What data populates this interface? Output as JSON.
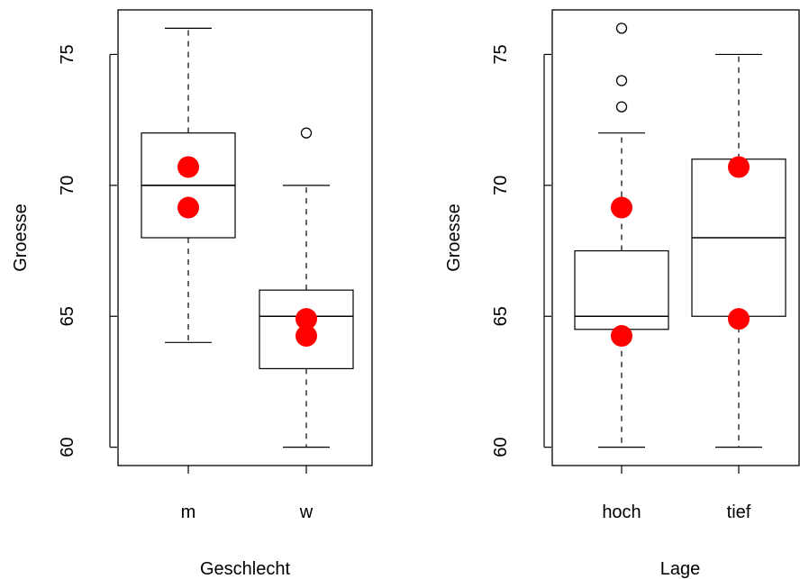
{
  "colors": {
    "mean_point": "#ff0000",
    "box_stroke": "#000000",
    "background": "#ffffff"
  },
  "chart_data": [
    {
      "type": "boxplot",
      "xlabel": "Geschlecht",
      "ylabel": "Groesse",
      "ylim": [
        59.3,
        76.7
      ],
      "yticks": [
        60,
        65,
        70,
        75
      ],
      "ytick_labels": [
        "60",
        "65",
        "70",
        "75"
      ],
      "categories": [
        "m",
        "w"
      ],
      "boxes": [
        {
          "name": "m",
          "whisker_low": 64,
          "q1": 68,
          "median": 70,
          "q3": 72,
          "whisker_high": 76,
          "outliers": []
        },
        {
          "name": "w",
          "whisker_low": 60,
          "q1": 63,
          "median": 65,
          "q3": 66,
          "whisker_high": 70,
          "outliers": [
            72
          ]
        }
      ],
      "points": [
        {
          "category": "m",
          "values": [
            70.7,
            69.15
          ]
        },
        {
          "category": "w",
          "values": [
            64.9,
            64.25
          ]
        }
      ]
    },
    {
      "type": "boxplot",
      "xlabel": "Lage",
      "ylabel": "Groesse",
      "ylim": [
        59.3,
        76.7
      ],
      "yticks": [
        60,
        65,
        70,
        75
      ],
      "ytick_labels": [
        "60",
        "65",
        "70",
        "75"
      ],
      "categories": [
        "hoch",
        "tief"
      ],
      "boxes": [
        {
          "name": "hoch",
          "whisker_low": 60,
          "q1": 64.5,
          "median": 65,
          "q3": 67.5,
          "whisker_high": 72,
          "outliers": [
            73,
            74,
            76
          ]
        },
        {
          "name": "tief",
          "whisker_low": 60,
          "q1": 65,
          "median": 68,
          "q3": 71,
          "whisker_high": 75,
          "outliers": []
        }
      ],
      "points": [
        {
          "category": "hoch",
          "values": [
            69.15,
            64.25
          ]
        },
        {
          "category": "tief",
          "values": [
            70.7,
            64.9
          ]
        }
      ]
    }
  ]
}
